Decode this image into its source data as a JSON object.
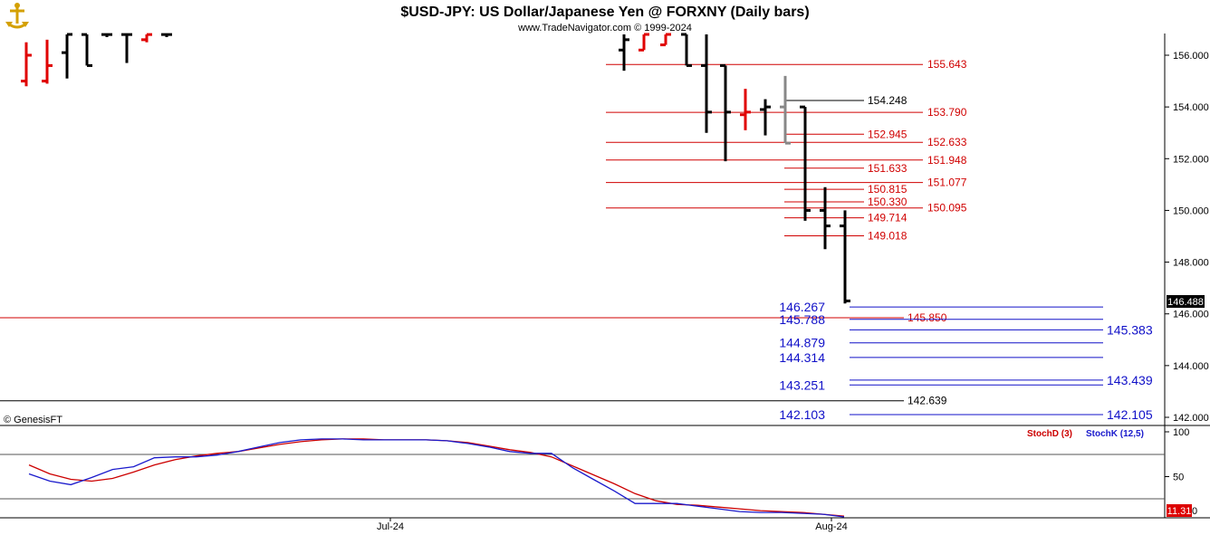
{
  "header": {
    "title": "$USD-JPY:  US Dollar/Japanese Yen @ FORXNY  (Daily bars)",
    "subtitle": "www.TradeNavigator.com © 1999-2024"
  },
  "copyright": "© GenesisFT",
  "price_tag": "146.488",
  "stoch_tag": "11.31",
  "stoch_tag_suffix": "0",
  "colors": {
    "up_bar": "#e00000",
    "down_bar": "#000000",
    "level_red": "#d00000",
    "level_blue": "#1010c8",
    "stoch_d": "#cc0000",
    "stoch_k": "#1a1acc",
    "grid": "#888888"
  },
  "chart_data": [
    {
      "type": "bar",
      "title": "$USD-JPY:  US Dollar/Japanese Yen @ FORXNY  (Daily bars)",
      "ylim": [
        141.5,
        157.2
      ],
      "y_ticks": [
        "156.000",
        "154.000",
        "152.000",
        "150.000",
        "148.000",
        "146.000",
        "144.000",
        "142.000"
      ],
      "x_ticks": [
        "Jul-24",
        "Aug-24"
      ],
      "last_price": "146.488",
      "bars": [
        {
          "o": 155.0,
          "h": 156.5,
          "l": 154.8,
          "c": 156.0,
          "color": "red"
        },
        {
          "o": 155.0,
          "h": 156.6,
          "l": 154.9,
          "c": 155.6,
          "color": "red"
        },
        {
          "o": 156.1,
          "h": 156.9,
          "l": 155.1,
          "c": 156.9,
          "color": "black"
        },
        {
          "o": 156.8,
          "h": 157.2,
          "l": 155.6,
          "c": 155.6,
          "color": "black"
        },
        {
          "o": 156.8,
          "h": 157.2,
          "l": 156.7,
          "c": 156.8,
          "color": "black"
        },
        {
          "o": 156.8,
          "h": 157.2,
          "l": 155.7,
          "c": 156.8,
          "color": "black"
        },
        {
          "o": 156.6,
          "h": 157.2,
          "l": 156.5,
          "c": 156.8,
          "color": "red"
        },
        {
          "o": 156.8,
          "h": 157.2,
          "l": 156.7,
          "c": 156.8,
          "color": "black"
        },
        {
          "o": 156.2,
          "h": 157.2,
          "l": 155.4,
          "c": 156.6,
          "color": "black"
        },
        {
          "o": 156.2,
          "h": 157.2,
          "l": 156.2,
          "c": 156.9,
          "color": "red"
        },
        {
          "o": 156.4,
          "h": 157.2,
          "l": 156.4,
          "c": 157.0,
          "color": "red"
        },
        {
          "o": 156.9,
          "h": 157.2,
          "l": 155.6,
          "c": 155.6,
          "color": "black"
        },
        {
          "o": 155.6,
          "h": 157.2,
          "l": 153.0,
          "c": 153.8,
          "color": "black"
        },
        {
          "o": 155.6,
          "h": 155.6,
          "l": 151.9,
          "c": 153.8,
          "color": "black"
        },
        {
          "o": 153.7,
          "h": 154.7,
          "l": 153.1,
          "c": 153.8,
          "color": "red"
        },
        {
          "o": 153.9,
          "h": 154.3,
          "l": 152.9,
          "c": 154.0,
          "color": "black"
        },
        {
          "o": 154.0,
          "h": 155.2,
          "l": 152.6,
          "c": 152.6,
          "color": "gray"
        },
        {
          "o": 154.0,
          "h": 154.0,
          "l": 149.6,
          "c": 150.0,
          "color": "black"
        },
        {
          "o": 150.0,
          "h": 150.9,
          "l": 148.5,
          "c": 149.4,
          "color": "black"
        },
        {
          "o": 149.4,
          "h": 150.0,
          "l": 146.4,
          "c": 146.5,
          "color": "black"
        }
      ],
      "levels_red": [
        {
          "value": 155.643,
          "label": "155.643"
        },
        {
          "value": 153.79,
          "label": "153.790"
        },
        {
          "value": 152.633,
          "label": "152.633"
        },
        {
          "value": 151.948,
          "label": "151.948"
        },
        {
          "value": 151.077,
          "label": "151.077"
        },
        {
          "value": 150.095,
          "label": "150.095"
        }
      ],
      "levels_red_short": [
        {
          "value": 152.945,
          "label": "152.945"
        },
        {
          "value": 151.633,
          "label": "151.633"
        },
        {
          "value": 150.815,
          "label": "150.815"
        },
        {
          "value": 150.33,
          "label": "150.330"
        },
        {
          "value": 149.714,
          "label": "149.714"
        },
        {
          "value": 149.018,
          "label": "149.018"
        }
      ],
      "level_full_red": {
        "value": 145.85,
        "label": "145.850"
      },
      "levels_black": [
        {
          "value": 154.248,
          "label": "154.248"
        },
        {
          "value": 142.639,
          "label": "142.639"
        }
      ],
      "levels_blue_left": [
        {
          "value": 146.267,
          "label": "146.267"
        },
        {
          "value": 145.788,
          "label": "145.788"
        },
        {
          "value": 144.879,
          "label": "144.879"
        },
        {
          "value": 144.314,
          "label": "144.314"
        },
        {
          "value": 143.251,
          "label": "143.251"
        },
        {
          "value": 142.103,
          "label": "142.103"
        }
      ],
      "levels_blue_right": [
        {
          "value": 145.383,
          "label": "145.383"
        },
        {
          "value": 143.439,
          "label": "143.439"
        },
        {
          "value": 142.105,
          "label": "142.105"
        }
      ]
    },
    {
      "type": "line",
      "ylim": [
        0,
        100
      ],
      "y_ticks": [
        "100",
        "50"
      ],
      "reference_lines": [
        80,
        20
      ],
      "series": [
        {
          "name": "StochD (3)",
          "color": "#cc0000",
          "values": [
            63,
            53,
            47,
            45,
            48,
            55,
            63,
            69,
            73,
            76,
            78,
            82,
            86,
            89,
            91,
            92,
            92,
            91,
            91,
            91,
            90,
            88,
            84,
            80,
            77,
            72,
            62,
            52,
            42,
            31,
            23,
            19,
            18,
            16,
            14,
            12,
            11,
            10,
            8,
            6
          ]
        },
        {
          "name": "StochK (12,5)",
          "color": "#1a1acc",
          "values": [
            53,
            45,
            41,
            49,
            58,
            61,
            71,
            72,
            72,
            74,
            78,
            83,
            88,
            91,
            92,
            92,
            91,
            91,
            91,
            91,
            90,
            87,
            83,
            78,
            76,
            76,
            60,
            47,
            34,
            20,
            20,
            20,
            17,
            14,
            11,
            10,
            10,
            9,
            8,
            5
          ]
        }
      ]
    }
  ]
}
